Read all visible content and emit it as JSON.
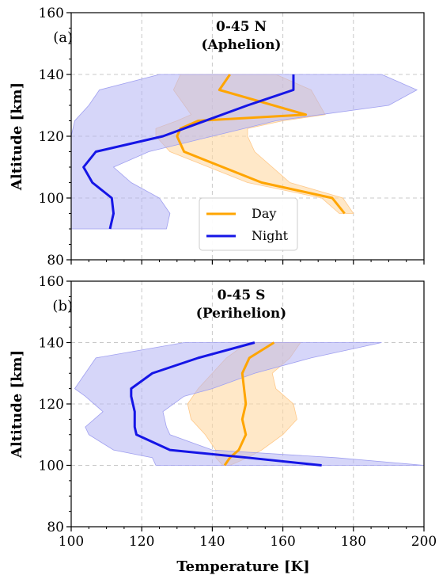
{
  "chart_data": [
    {
      "type": "line",
      "panel_label": "(a)",
      "title_line1": "0-45 N",
      "title_line2": "(Aphelion)",
      "xlabel": "",
      "ylabel": "Altitude [km]",
      "xlim": [
        100,
        200
      ],
      "ylim": [
        80,
        160
      ],
      "xticks": [
        100,
        120,
        140,
        160,
        180,
        200
      ],
      "yticks": [
        80,
        100,
        120,
        140,
        160
      ],
      "grid": true,
      "legend_position": "lower-center",
      "series": [
        {
          "name": "Day",
          "color": "#FFA500",
          "points": [
            [
              145,
              140
            ],
            [
              142,
              135
            ],
            [
              166.5,
              127
            ],
            [
              136,
              125
            ],
            [
              131,
              122.5
            ],
            [
              130,
              120
            ],
            [
              132,
              115
            ],
            [
              154,
              105
            ],
            [
              174,
              100
            ],
            [
              177.5,
              95
            ]
          ],
          "band": [
            [
              131,
              158,
              140
            ],
            [
              129,
              168,
              135
            ],
            [
              134,
              172,
              127
            ],
            [
              130,
              160,
              125
            ],
            [
              124,
              150,
              122.5
            ],
            [
              124,
              150,
              120
            ],
            [
              128,
              152,
              115
            ],
            [
              150,
              162,
              105
            ],
            [
              171,
              177,
              100
            ],
            [
              176,
              180,
              95
            ]
          ]
        },
        {
          "name": "Night",
          "color": "#1515E6",
          "points": [
            [
              163,
              140
            ],
            [
              163,
              135
            ],
            [
              150,
              130
            ],
            [
              126,
              120
            ],
            [
              107,
              115
            ],
            [
              103.5,
              110
            ],
            [
              106,
              105
            ],
            [
              111.5,
              100
            ],
            [
              112,
              95
            ],
            [
              111,
              90
            ]
          ],
          "band": [
            [
              125,
              188,
              140
            ],
            [
              108,
              198,
              135
            ],
            [
              105,
              190,
              130
            ],
            [
              101,
              158,
              125
            ],
            [
              100,
              140,
              120
            ],
            [
              100,
              122,
              115
            ],
            [
              100,
              112,
              110
            ],
            [
              100,
              117,
              105
            ],
            [
              100,
              125,
              100
            ],
            [
              100,
              128,
              95
            ],
            [
              100,
              127,
              90
            ]
          ]
        }
      ]
    },
    {
      "type": "line",
      "panel_label": "(b)",
      "title_line1": "0-45 S",
      "title_line2": "(Perihelion)",
      "xlabel": "Temperature [K]",
      "ylabel": "Altitude [km]",
      "xlim": [
        100,
        200
      ],
      "ylim": [
        80,
        160
      ],
      "xticks": [
        100,
        120,
        140,
        160,
        180,
        200
      ],
      "yticks": [
        80,
        100,
        120,
        140,
        160
      ],
      "grid": true,
      "series": [
        {
          "name": "Day",
          "color": "#FFA500",
          "points": [
            [
              157.5,
              140
            ],
            [
              150.5,
              135
            ],
            [
              148.5,
              130
            ],
            [
              149,
              125
            ],
            [
              149.5,
              120
            ],
            [
              148.5,
              115
            ],
            [
              149.5,
              110
            ],
            [
              147.5,
              105
            ],
            [
              145,
              102.5
            ],
            [
              143.5,
              100
            ]
          ],
          "band": [
            [
              150,
              165,
              140
            ],
            [
              144,
              162,
              135
            ],
            [
              140,
              157,
              130
            ],
            [
              136,
              158,
              125
            ],
            [
              133,
              163,
              120
            ],
            [
              134,
              164,
              115
            ],
            [
              138,
              160,
              110
            ],
            [
              141,
              154,
              105
            ],
            [
              141,
              150,
              102.5
            ],
            [
              143,
              145,
              100
            ]
          ]
        },
        {
          "name": "Night",
          "color": "#1515E6",
          "points": [
            [
              152,
              140
            ],
            [
              136,
              135
            ],
            [
              123,
              130
            ],
            [
              117,
              125
            ],
            [
              117,
              122.5
            ],
            [
              118,
              117.5
            ],
            [
              118,
              112.5
            ],
            [
              118.5,
              110
            ],
            [
              128,
              105
            ],
            [
              150,
              102.5
            ],
            [
              171,
              100
            ]
          ],
          "band": [
            [
              132,
              188,
              140
            ],
            [
              107,
              168,
              135
            ],
            [
              104,
              152,
              130
            ],
            [
              101,
              140,
              125
            ],
            [
              104,
              132,
              122.5
            ],
            [
              109,
              126,
              117.5
            ],
            [
              104,
              127,
              112.5
            ],
            [
              105,
              128,
              110
            ],
            [
              112,
              140,
              105
            ],
            [
              123,
              175,
              102.5
            ],
            [
              124,
              200,
              100
            ]
          ]
        }
      ]
    }
  ]
}
